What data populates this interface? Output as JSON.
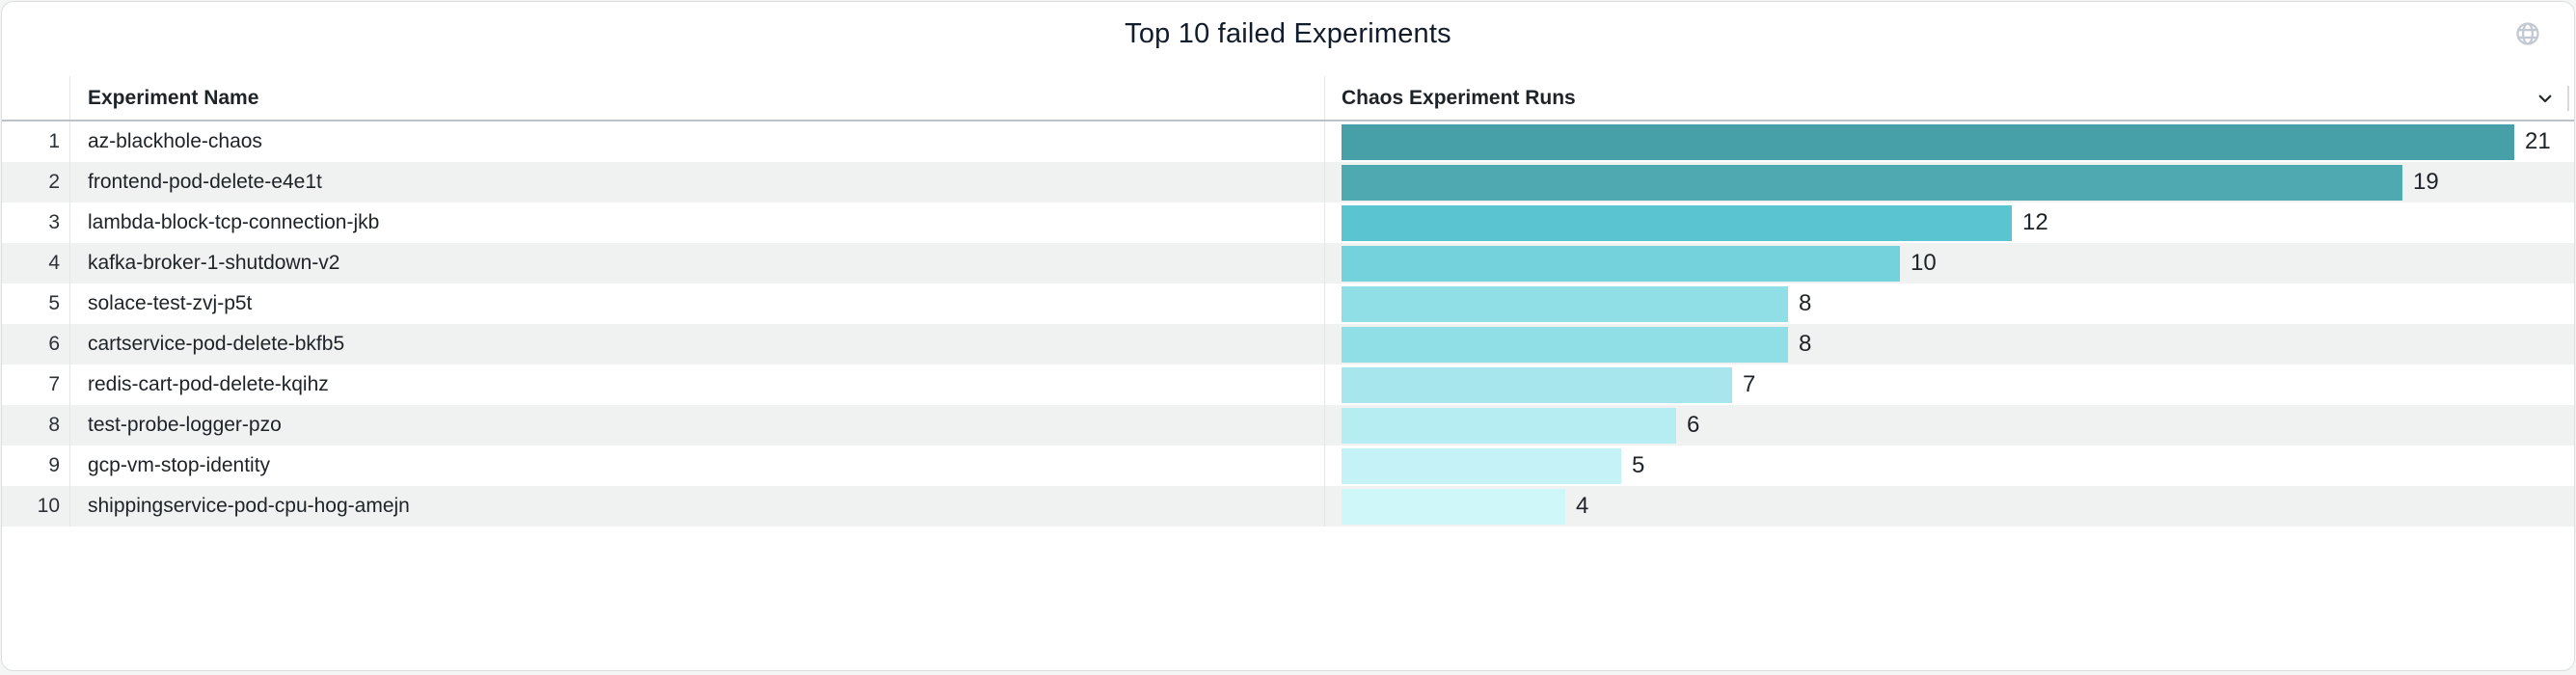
{
  "panel": {
    "title": "Top 10 failed Experiments",
    "background": "#ffffff",
    "border_color": "#dcdee0",
    "icons": {
      "globe": "panel-links-globe-icon",
      "chevron": "chevron-down-icon"
    }
  },
  "table": {
    "columns": [
      "Experiment Name",
      "Chaos Experiment Runs"
    ],
    "stripe_color": "#f0f1f1",
    "divider_color": "#e4e6e7",
    "header_separator_color": "#bcc2c6"
  },
  "chart_data": {
    "type": "bar",
    "orientation": "horizontal",
    "title": "Top 10 failed Experiments",
    "xlabel": "Chaos Experiment Runs",
    "ylabel": "Experiment Name",
    "xlim": [
      0,
      21
    ],
    "grid": false,
    "legend": false,
    "row_numbers": [
      "1",
      "2",
      "3",
      "4",
      "5",
      "6",
      "7",
      "8",
      "9",
      "10"
    ],
    "categories": [
      "az-blackhole-chaos",
      "frontend-pod-delete-e4e1t",
      "lambda-block-tcp-connection-jkb",
      "kafka-broker-1-shutdown-v2",
      "solace-test-zvj-p5t",
      "cartservice-pod-delete-bkfb5",
      "redis-cart-pod-delete-kqihz",
      "test-probe-logger-pzo",
      "gcp-vm-stop-identity",
      "shippingservice-pod-cpu-hog-amejn"
    ],
    "values": [
      21,
      19,
      12,
      10,
      8,
      8,
      7,
      6,
      5,
      4
    ],
    "bar_colors": [
      "#479FA8",
      "#4EA9B1",
      "#5AC5D1",
      "#74D2DD",
      "#90DEE6",
      "#90DEE6",
      "#A7E6ED",
      "#B6EDF2",
      "#C5F2F7",
      "#CFF7FA"
    ],
    "value_label_color": "#1e2328"
  }
}
